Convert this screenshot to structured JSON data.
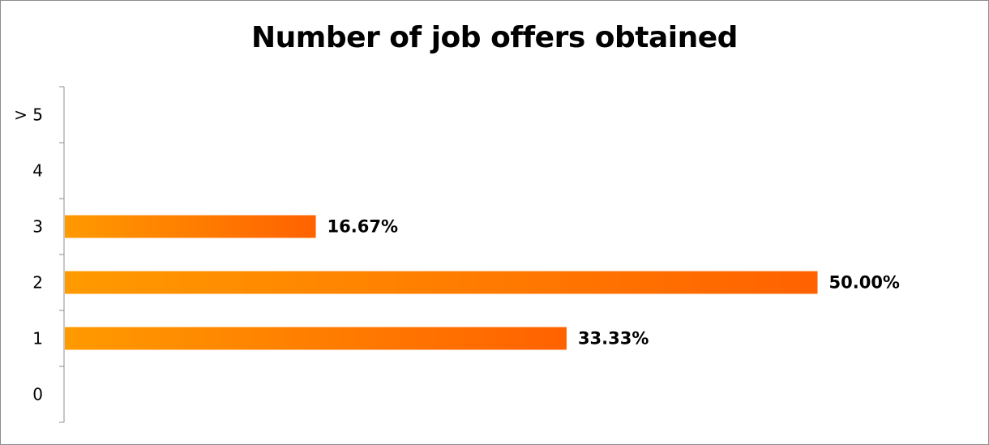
{
  "chart_data": {
    "type": "bar",
    "orientation": "horizontal",
    "title": "Number of job offers obtained",
    "categories": [
      "0",
      "1",
      "2",
      "3",
      "4",
      "> 5"
    ],
    "values": [
      0,
      33.33,
      50.0,
      16.67,
      0,
      0
    ],
    "data_labels": [
      "",
      "33.33%",
      "50.00%",
      "16.67%",
      "",
      ""
    ],
    "value_axis_visible": false,
    "grid": false,
    "legend": "none",
    "xlim": [
      0,
      55
    ],
    "bar_gradient": [
      "#ff9a00",
      "#ff6200"
    ],
    "border_color": "#8c8c8c"
  }
}
